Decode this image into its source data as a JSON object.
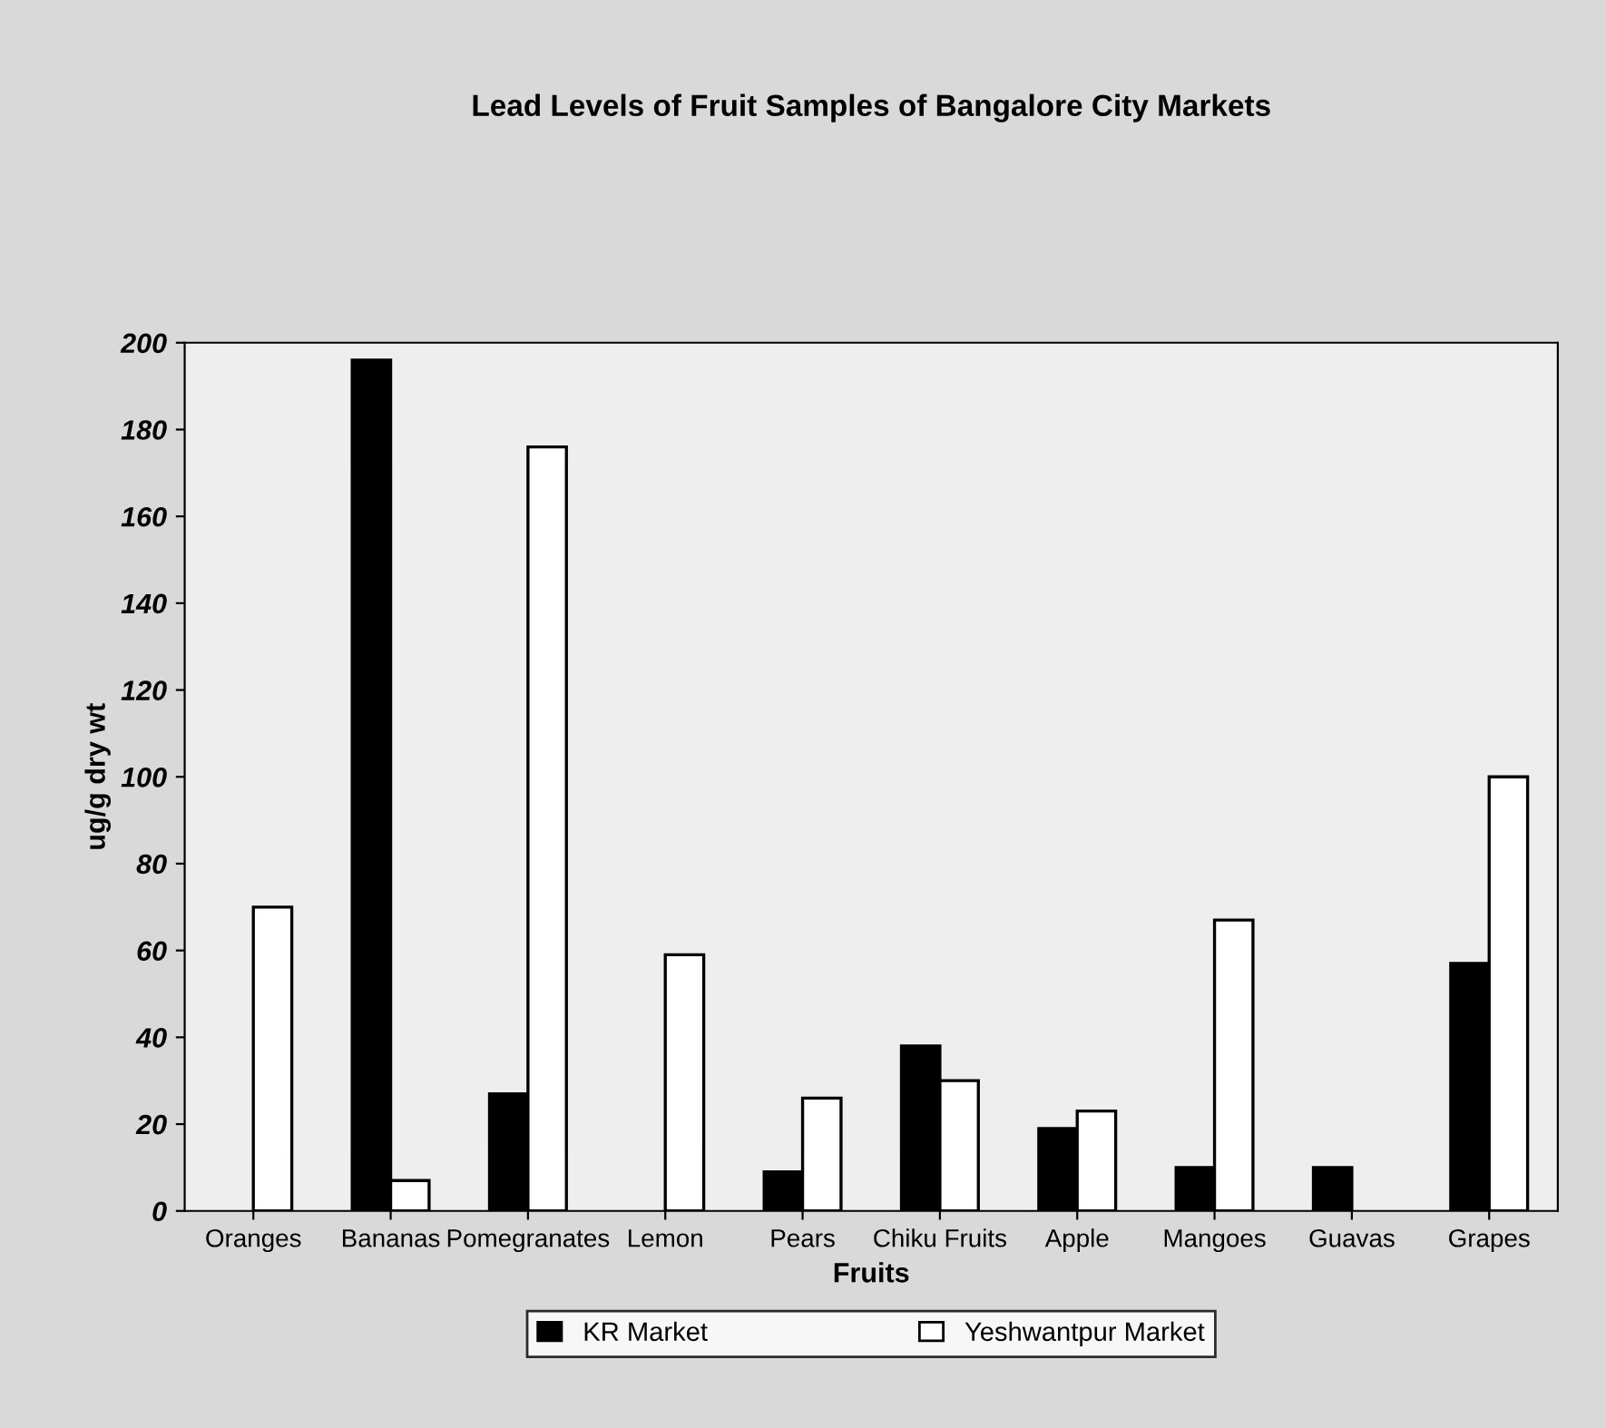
{
  "chart_data": {
    "type": "bar",
    "title": "Lead Levels of Fruit Samples of Bangalore City Markets",
    "xlabel": "Fruits",
    "ylabel": "ug/g dry wt",
    "categories": [
      "Oranges",
      "Bananas",
      "Pomegranates",
      "Lemon",
      "Pears",
      "Chiku Fruits",
      "Apple",
      "Mangoes",
      "Guavas",
      "Grapes"
    ],
    "series": [
      {
        "name": "KR Market",
        "color": "#000000",
        "values": [
          0,
          196,
          27,
          0,
          9,
          38,
          19,
          10,
          10,
          57
        ]
      },
      {
        "name": "Yeshwantpur Market",
        "color": "#ffffff",
        "values": [
          70,
          7,
          176,
          59,
          26,
          30,
          23,
          67,
          0,
          100
        ]
      }
    ],
    "ylim": [
      0,
      200
    ],
    "yticks": [
      0,
      20,
      40,
      60,
      80,
      100,
      120,
      140,
      160,
      180,
      200
    ],
    "grid": false,
    "legend": "bottom"
  }
}
